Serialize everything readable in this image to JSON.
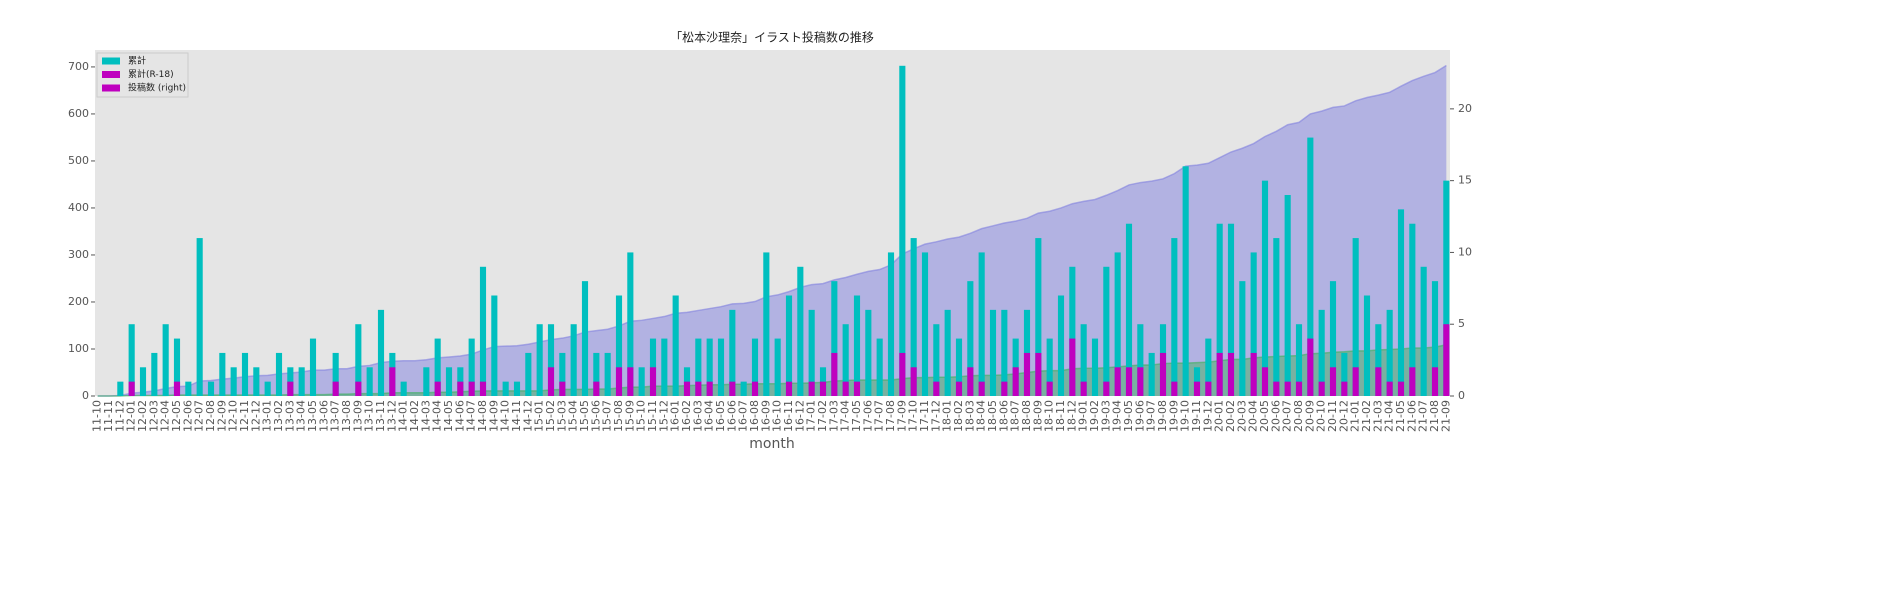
{
  "chart_data": {
    "type": "bar",
    "title": "「松本沙理奈」イラスト投稿数の推移",
    "x_label": "month",
    "categories": [
      "11-10",
      "11-11",
      "11-12",
      "12-01",
      "12-02",
      "12-03",
      "12-04",
      "12-05",
      "12-06",
      "12-07",
      "12-08",
      "12-09",
      "12-10",
      "12-11",
      "12-12",
      "13-01",
      "13-02",
      "13-03",
      "13-04",
      "13-05",
      "13-06",
      "13-07",
      "13-08",
      "13-09",
      "13-10",
      "13-11",
      "13-12",
      "14-01",
      "14-02",
      "14-03",
      "14-04",
      "14-05",
      "14-06",
      "14-07",
      "14-08",
      "14-09",
      "14-10",
      "14-11",
      "14-12",
      "15-01",
      "15-02",
      "15-03",
      "15-04",
      "15-05",
      "15-06",
      "15-07",
      "15-08",
      "15-09",
      "15-10",
      "15-11",
      "15-12",
      "16-01",
      "16-02",
      "16-03",
      "16-04",
      "16-05",
      "16-06",
      "16-07",
      "16-08",
      "16-09",
      "16-10",
      "16-11",
      "16-12",
      "17-01",
      "17-02",
      "17-03",
      "17-04",
      "17-05",
      "17-06",
      "17-07",
      "17-08",
      "17-09",
      "17-10",
      "17-11",
      "17-12",
      "18-01",
      "18-02",
      "18-03",
      "18-04",
      "18-05",
      "18-06",
      "18-07",
      "18-08",
      "18-09",
      "18-10",
      "18-11",
      "18-12",
      "19-01",
      "19-02",
      "19-03",
      "19-04",
      "19-05",
      "19-06",
      "19-07",
      "19-08",
      "19-09",
      "19-10",
      "19-11",
      "19-12",
      "20-01",
      "20-02",
      "20-03",
      "20-04",
      "20-05",
      "20-06",
      "20-07",
      "20-08",
      "20-09",
      "20-10",
      "20-11",
      "20-12",
      "21-01",
      "21-02",
      "21-03",
      "21-04",
      "21-05",
      "21-06",
      "21-07",
      "21-08",
      "21-09"
    ],
    "series": [
      {
        "kind": "area",
        "axis": "y",
        "color": "#8080e0",
        "values": [
          0,
          0,
          1,
          6,
          8,
          11,
          16,
          20,
          21,
          32,
          33,
          36,
          38,
          41,
          43,
          44,
          47,
          49,
          51,
          55,
          55,
          58,
          58,
          63,
          65,
          71,
          74,
          75,
          75,
          77,
          81,
          83,
          85,
          89,
          98,
          105,
          106,
          107,
          110,
          115,
          120,
          123,
          128,
          136,
          139,
          142,
          149,
          159,
          161,
          165,
          169,
          176,
          178,
          182,
          186,
          190,
          196,
          197,
          201,
          211,
          215,
          222,
          231,
          237,
          239,
          247,
          252,
          259,
          265,
          269,
          279,
          302,
          313,
          323,
          328,
          334,
          338,
          346,
          356,
          362,
          368,
          372,
          378,
          389,
          393,
          400,
          409,
          414,
          418,
          427,
          437,
          449,
          454,
          457,
          462,
          473,
          489,
          491,
          495,
          507,
          519,
          527,
          537,
          552,
          563,
          577,
          582,
          600,
          606,
          614,
          617,
          628,
          635,
          640,
          646,
          659,
          671,
          680,
          688,
          703
        ]
      },
      {
        "kind": "area",
        "axis": "y",
        "color": "#40b060",
        "values": [
          0,
          0,
          0,
          1,
          1,
          1,
          1,
          2,
          2,
          2,
          2,
          2,
          2,
          2,
          2,
          2,
          2,
          3,
          3,
          3,
          3,
          4,
          4,
          5,
          5,
          5,
          7,
          7,
          7,
          7,
          8,
          8,
          9,
          10,
          11,
          11,
          11,
          11,
          11,
          11,
          13,
          14,
          14,
          14,
          15,
          15,
          17,
          19,
          19,
          21,
          21,
          21,
          22,
          23,
          24,
          24,
          25,
          25,
          26,
          26,
          26,
          27,
          27,
          28,
          29,
          32,
          33,
          34,
          34,
          34,
          34,
          37,
          39,
          39,
          40,
          40,
          41,
          43,
          44,
          44,
          45,
          47,
          50,
          53,
          54,
          54,
          58,
          59,
          59,
          60,
          62,
          64,
          66,
          66,
          69,
          70,
          70,
          71,
          72,
          75,
          78,
          78,
          81,
          83,
          84,
          85,
          86,
          90,
          91,
          93,
          94,
          96,
          96,
          98,
          99,
          100,
          102,
          102,
          104,
          109
        ]
      },
      {
        "kind": "bar",
        "axis": "y2",
        "color": "#00bfbf",
        "values": [
          0,
          0,
          1,
          5,
          2,
          3,
          5,
          4,
          1,
          11,
          1,
          3,
          2,
          3,
          2,
          1,
          3,
          2,
          2,
          4,
          0,
          3,
          0,
          5,
          2,
          6,
          3,
          1,
          0,
          2,
          4,
          2,
          2,
          4,
          9,
          7,
          1,
          1,
          3,
          5,
          5,
          3,
          5,
          8,
          3,
          3,
          7,
          10,
          2,
          4,
          4,
          7,
          2,
          4,
          4,
          4,
          6,
          1,
          4,
          10,
          4,
          7,
          9,
          6,
          2,
          8,
          5,
          7,
          6,
          4,
          10,
          23,
          11,
          10,
          5,
          6,
          4,
          8,
          10,
          6,
          6,
          4,
          6,
          11,
          4,
          7,
          9,
          5,
          4,
          9,
          10,
          12,
          5,
          3,
          5,
          11,
          16,
          2,
          4,
          12,
          12,
          8,
          10,
          15,
          11,
          14,
          5,
          18,
          6,
          8,
          3,
          11,
          7,
          5,
          6,
          13,
          12,
          9,
          8,
          15
        ]
      },
      {
        "kind": "bar",
        "axis": "y2",
        "color": "#bf00bf",
        "values": [
          0,
          0,
          0,
          1,
          0,
          0,
          0,
          1,
          0,
          0,
          0,
          0,
          0,
          0,
          0,
          0,
          0,
          1,
          0,
          0,
          0,
          1,
          0,
          1,
          0,
          0,
          2,
          0,
          0,
          0,
          1,
          0,
          1,
          1,
          1,
          0,
          0,
          0,
          0,
          0,
          2,
          1,
          0,
          0,
          1,
          0,
          2,
          2,
          0,
          2,
          0,
          0,
          1,
          1,
          1,
          0,
          1,
          0,
          1,
          0,
          0,
          1,
          0,
          1,
          1,
          3,
          1,
          1,
          0,
          0,
          0,
          3,
          2,
          0,
          1,
          0,
          1,
          2,
          1,
          0,
          1,
          2,
          3,
          3,
          1,
          0,
          4,
          1,
          0,
          1,
          2,
          2,
          2,
          0,
          3,
          1,
          0,
          1,
          1,
          3,
          3,
          0,
          3,
          2,
          1,
          1,
          1,
          4,
          1,
          2,
          1,
          2,
          0,
          2,
          1,
          1,
          2,
          0,
          2,
          5
        ]
      }
    ],
    "legend": [
      {
        "name": "累計",
        "color": "#00bfbf"
      },
      {
        "name": "累計(R-18)",
        "color": "#bf00bf"
      },
      {
        "name": "投稿数 (right)",
        "color": "#bf00bf"
      }
    ],
    "ylim": [
      0,
      736
    ],
    "yticks": [
      0,
      100,
      200,
      300,
      400,
      500,
      600,
      700
    ],
    "y2lim": [
      0,
      24.1
    ],
    "y2ticks": [
      0,
      5,
      10,
      15,
      20
    ],
    "grid": false
  }
}
